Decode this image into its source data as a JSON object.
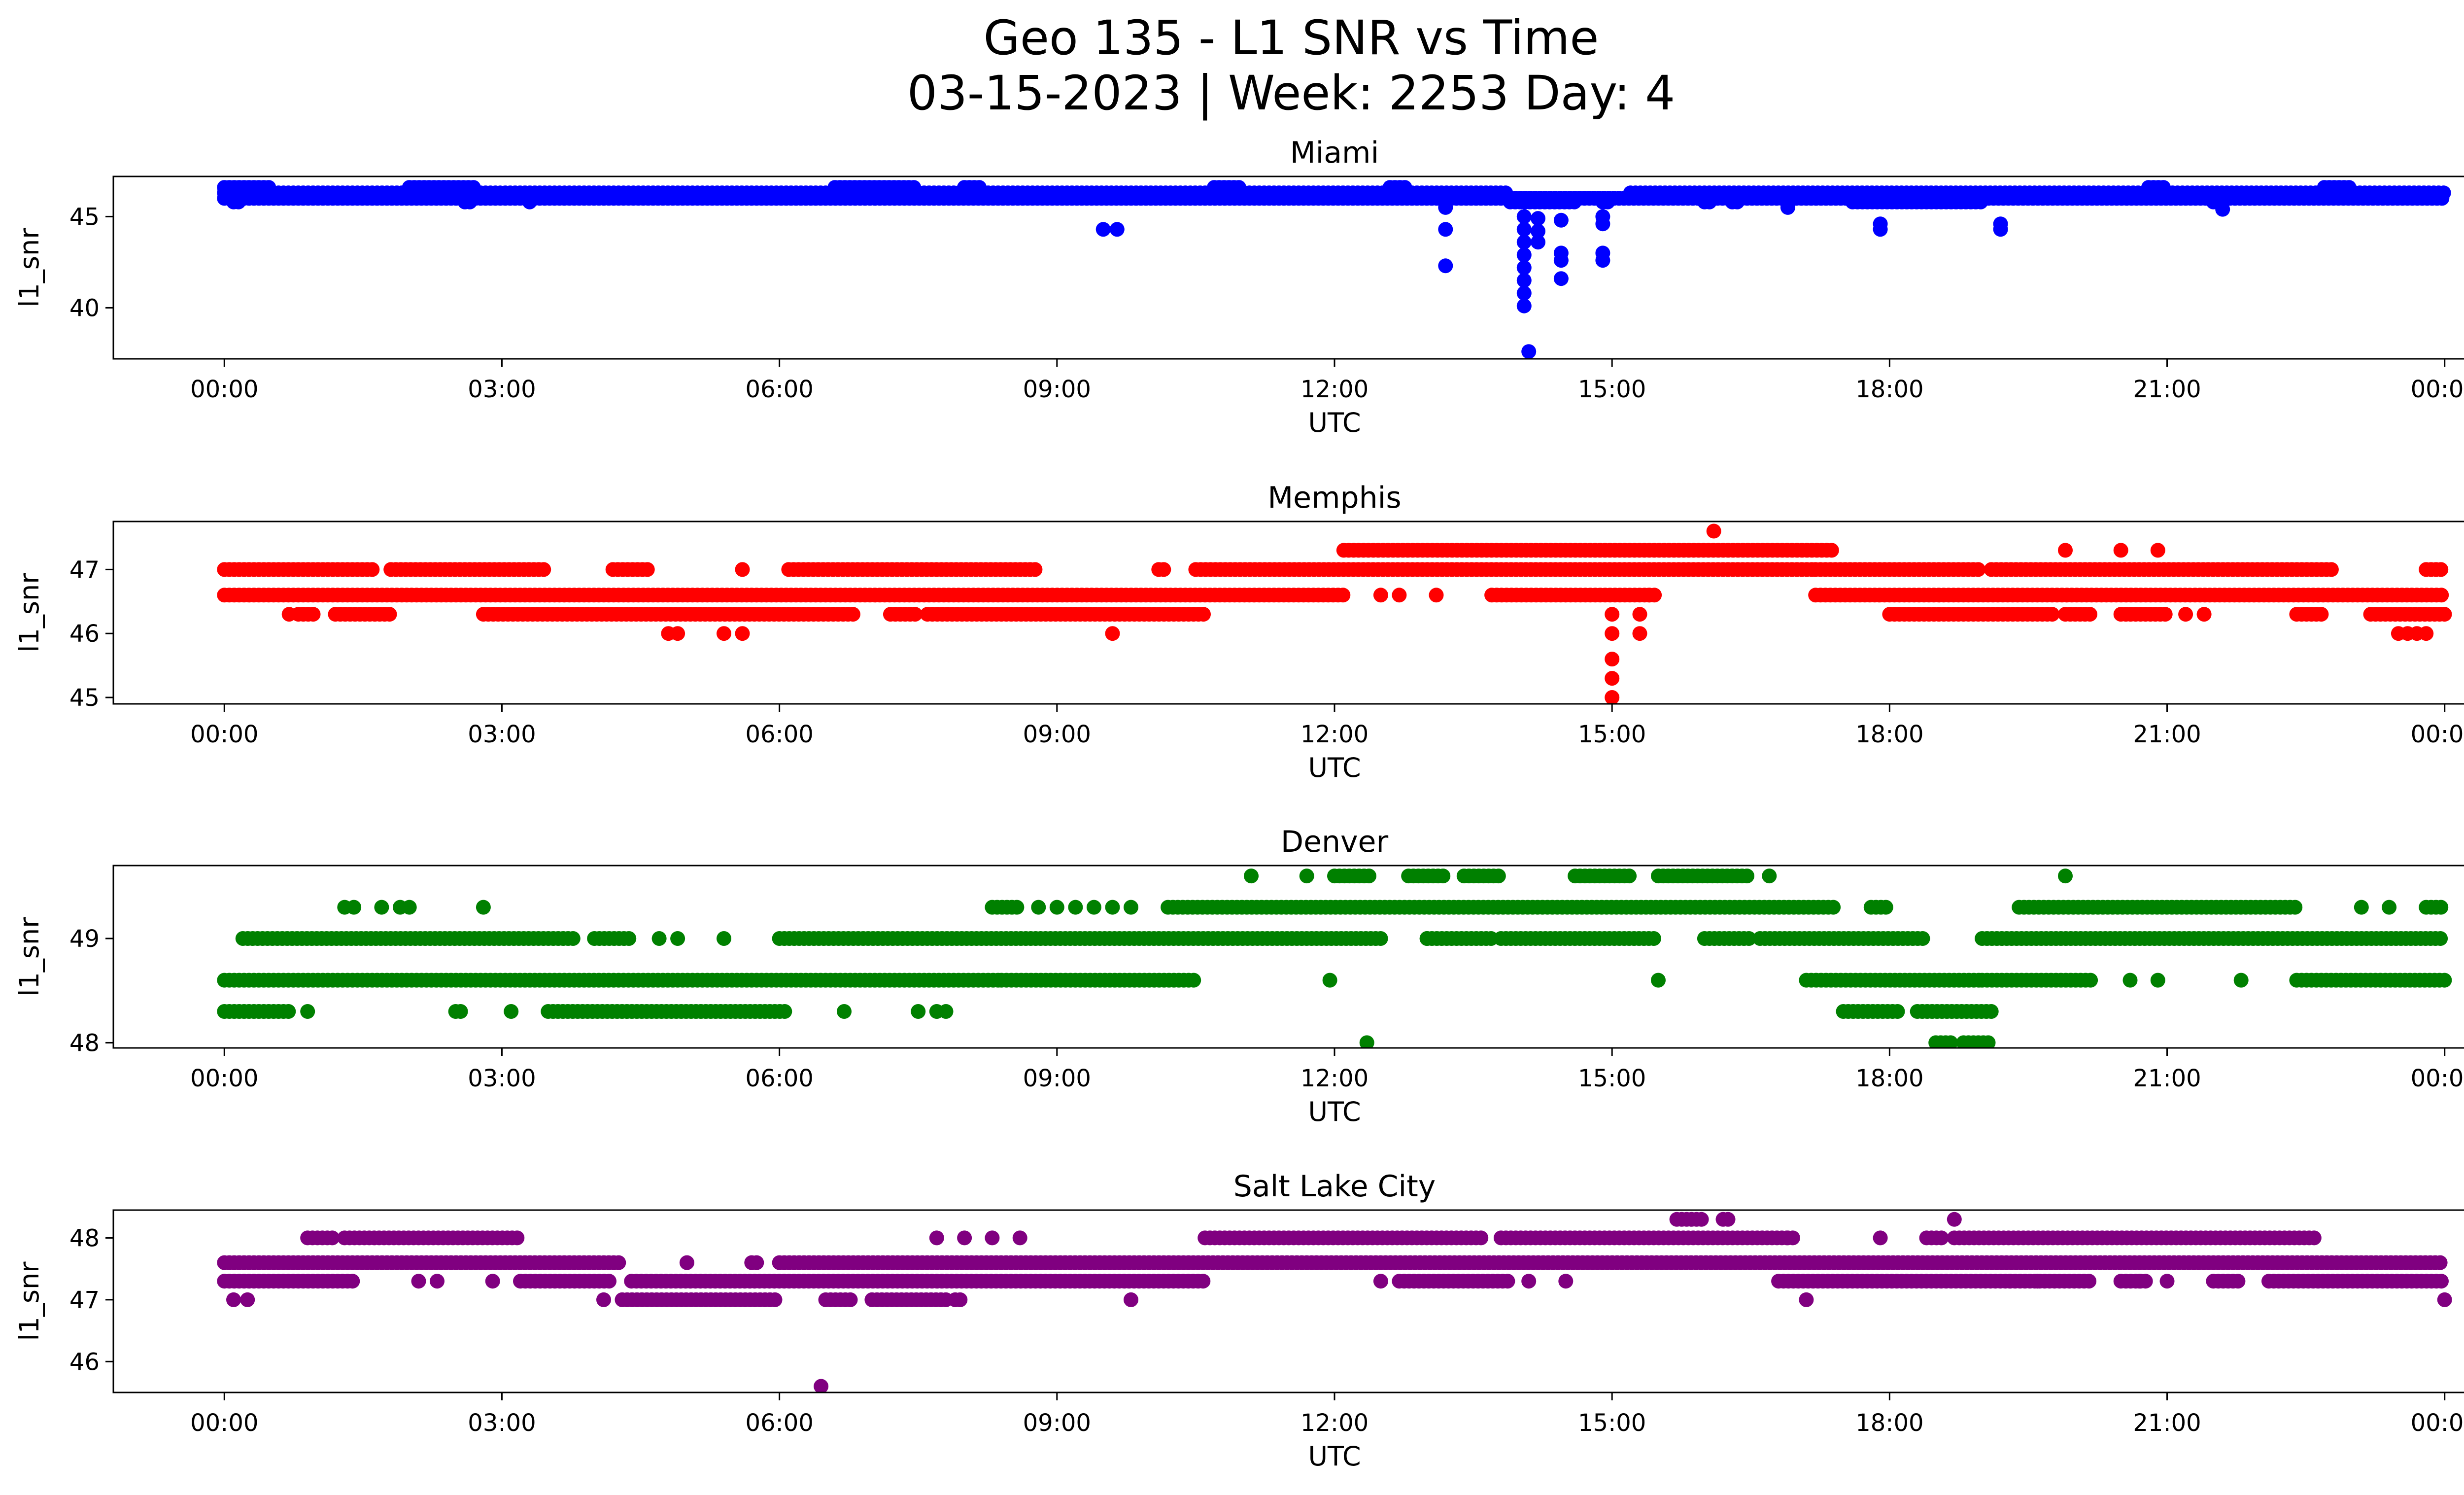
{
  "figure": {
    "title_line1": "Geo 135 - L1 SNR vs Time",
    "title_line2": "03-15-2023 | Week: 2253 Day: 4"
  },
  "chart_data": [
    {
      "type": "scatter",
      "title": "Miami",
      "xlabel": "UTC",
      "ylabel": "l1_snr",
      "color": "#0000ff",
      "x_ticks": [
        "00:00",
        "03:00",
        "06:00",
        "09:00",
        "12:00",
        "15:00",
        "18:00",
        "21:00",
        "00:00"
      ],
      "xlim_hours": [
        -1.2,
        25.2
      ],
      "ylim": [
        37.2,
        47.2
      ],
      "y_ticks": [
        40,
        45
      ],
      "levels": [
        {
          "y": 46.0,
          "ranges": [
            [
              0.0,
              24.0
            ]
          ]
        },
        {
          "y": 46.3,
          "ranges": [
            [
              0.0,
              13.9
            ],
            [
              15.2,
              24.0
            ]
          ]
        },
        {
          "y": 45.8,
          "ranges": [
            [
              0.1,
              0.2
            ],
            [
              2.6,
              2.7
            ],
            [
              3.3,
              3.35
            ],
            [
              13.9,
              14.6
            ],
            [
              14.9,
              15.0
            ],
            [
              16.0,
              16.1
            ],
            [
              16.3,
              16.4
            ],
            [
              17.6,
              19.0
            ],
            [
              21.5,
              21.6
            ]
          ]
        },
        {
          "y": 46.6,
          "ranges": [
            [
              0.0,
              0.5
            ],
            [
              2.0,
              2.7
            ],
            [
              6.6,
              7.5
            ],
            [
              8.0,
              8.2
            ],
            [
              10.7,
              11.0
            ],
            [
              12.6,
              12.8
            ],
            [
              20.8,
              21.0
            ],
            [
              22.7,
              23.0
            ]
          ]
        }
      ],
      "points": [
        [
          9.5,
          44.3
        ],
        [
          9.65,
          44.3
        ],
        [
          13.2,
          45.5
        ],
        [
          13.2,
          44.3
        ],
        [
          13.2,
          42.3
        ],
        [
          14.05,
          45.0
        ],
        [
          14.05,
          44.3
        ],
        [
          14.05,
          43.6
        ],
        [
          14.05,
          42.9
        ],
        [
          14.05,
          42.2
        ],
        [
          14.05,
          41.5
        ],
        [
          14.05,
          40.8
        ],
        [
          14.05,
          40.1
        ],
        [
          14.1,
          37.6
        ],
        [
          14.2,
          44.9
        ],
        [
          14.2,
          44.2
        ],
        [
          14.2,
          43.6
        ],
        [
          14.45,
          44.8
        ],
        [
          14.45,
          43.0
        ],
        [
          14.45,
          42.6
        ],
        [
          14.45,
          41.6
        ],
        [
          14.9,
          45.0
        ],
        [
          14.9,
          44.6
        ],
        [
          14.9,
          43.0
        ],
        [
          14.9,
          42.6
        ],
        [
          17.9,
          44.6
        ],
        [
          17.9,
          44.3
        ],
        [
          19.2,
          44.6
        ],
        [
          19.2,
          44.3
        ],
        [
          16.9,
          45.5
        ],
        [
          21.6,
          45.4
        ]
      ]
    },
    {
      "type": "scatter",
      "title": "Memphis",
      "xlabel": "UTC",
      "ylabel": "l1_snr",
      "color": "#ff0000",
      "x_ticks": [
        "00:00",
        "03:00",
        "06:00",
        "09:00",
        "12:00",
        "15:00",
        "18:00",
        "21:00",
        "00:00"
      ],
      "xlim_hours": [
        -1.2,
        25.2
      ],
      "ylim": [
        44.9,
        47.75
      ],
      "y_ticks": [
        45,
        46,
        47
      ],
      "levels": [
        {
          "y": 46.6,
          "ranges": [
            [
              0.0,
              12.1
            ],
            [
              17.2,
              24.0
            ]
          ]
        },
        {
          "y": 47.0,
          "ranges": [
            [
              0.0,
              1.6
            ],
            [
              1.8,
              3.5
            ],
            [
              4.2,
              4.6
            ],
            [
              6.1,
              8.8
            ],
            [
              10.1,
              10.2
            ],
            [
              10.5,
              17.2
            ],
            [
              17.2,
              19.0
            ],
            [
              19.1,
              22.8
            ],
            [
              23.8,
              24.0
            ]
          ]
        },
        {
          "y": 46.3,
          "ranges": [
            [
              0.8,
              1.0
            ],
            [
              1.2,
              1.8
            ],
            [
              2.8,
              6.8
            ],
            [
              7.2,
              7.5
            ],
            [
              7.6,
              10.6
            ],
            [
              18.0,
              19.8
            ],
            [
              19.9,
              20.2
            ],
            [
              20.5,
              21.0
            ],
            [
              22.4,
              22.7
            ],
            [
              23.2,
              24.0
            ]
          ]
        },
        {
          "y": 47.3,
          "ranges": [
            [
              12.1,
              17.4
            ]
          ]
        },
        {
          "y": 46.6,
          "ranges": [
            [
              13.7,
              15.5
            ]
          ]
        }
      ],
      "points": [
        [
          0.7,
          46.3
        ],
        [
          4.8,
          46.0
        ],
        [
          4.9,
          46.0
        ],
        [
          5.4,
          46.0
        ],
        [
          5.6,
          46.0
        ],
        [
          5.6,
          47.0
        ],
        [
          9.6,
          46.0
        ],
        [
          12.5,
          46.6
        ],
        [
          12.7,
          46.6
        ],
        [
          13.1,
          46.6
        ],
        [
          15.4,
          46.6
        ],
        [
          15.0,
          46.3
        ],
        [
          15.0,
          46.0
        ],
        [
          15.0,
          45.6
        ],
        [
          15.0,
          45.3
        ],
        [
          15.0,
          45.0
        ],
        [
          15.3,
          46.3
        ],
        [
          15.3,
          46.0
        ],
        [
          16.1,
          47.6
        ],
        [
          19.9,
          47.3
        ],
        [
          20.5,
          47.3
        ],
        [
          20.9,
          47.3
        ],
        [
          21.2,
          46.3
        ],
        [
          21.4,
          46.3
        ],
        [
          23.5,
          46.0
        ],
        [
          23.6,
          46.0
        ],
        [
          23.7,
          46.0
        ],
        [
          23.8,
          46.0
        ]
      ]
    },
    {
      "type": "scatter",
      "title": "Denver",
      "xlabel": "UTC",
      "ylabel": "l1_snr",
      "color": "#008000",
      "x_ticks": [
        "00:00",
        "03:00",
        "06:00",
        "09:00",
        "12:00",
        "15:00",
        "18:00",
        "21:00",
        "00:00"
      ],
      "xlim_hours": [
        -1.2,
        25.2
      ],
      "ylim": [
        47.95,
        49.7
      ],
      "y_ticks": [
        48,
        49
      ],
      "levels": [
        {
          "y": 48.6,
          "ranges": [
            [
              0.0,
              8.4
            ],
            [
              8.4,
              10.5
            ],
            [
              17.1,
              19.0
            ],
            [
              19.0,
              20.2
            ],
            [
              22.4,
              24.0
            ]
          ]
        },
        {
          "y": 49.0,
          "ranges": [
            [
              0.2,
              3.8
            ],
            [
              4.0,
              4.4
            ],
            [
              6.0,
              12.5
            ],
            [
              13.0,
              13.7
            ],
            [
              13.8,
              15.5
            ],
            [
              16.0,
              16.5
            ],
            [
              16.6,
              18.4
            ],
            [
              19.0,
              24.0
            ]
          ]
        },
        {
          "y": 48.3,
          "ranges": [
            [
              0.0,
              0.7
            ],
            [
              2.5,
              2.6
            ],
            [
              3.5,
              6.1
            ],
            [
              17.5,
              18.1
            ],
            [
              18.3,
              19.1
            ]
          ]
        },
        {
          "y": 49.3,
          "ranges": [
            [
              8.3,
              8.6
            ],
            [
              10.2,
              17.4
            ],
            [
              17.8,
              18.0
            ],
            [
              19.4,
              22.4
            ],
            [
              23.8,
              24.0
            ]
          ]
        },
        {
          "y": 49.6,
          "ranges": [
            [
              12.0,
              12.4
            ],
            [
              12.8,
              13.2
            ],
            [
              13.4,
              13.8
            ],
            [
              14.6,
              15.2
            ],
            [
              15.5,
              16.5
            ]
          ]
        },
        {
          "y": 48.0,
          "ranges": [
            [
              18.5,
              18.7
            ],
            [
              18.8,
              19.1
            ]
          ]
        }
      ],
      "points": [
        [
          0.9,
          48.3
        ],
        [
          1.3,
          49.3
        ],
        [
          1.4,
          49.3
        ],
        [
          1.7,
          49.3
        ],
        [
          1.9,
          49.3
        ],
        [
          2.0,
          49.3
        ],
        [
          2.8,
          49.3
        ],
        [
          3.1,
          48.3
        ],
        [
          4.7,
          49.0
        ],
        [
          4.9,
          49.0
        ],
        [
          5.4,
          49.0
        ],
        [
          6.7,
          48.3
        ],
        [
          7.5,
          48.3
        ],
        [
          7.7,
          48.3
        ],
        [
          7.8,
          48.3
        ],
        [
          8.8,
          49.3
        ],
        [
          9.0,
          49.3
        ],
        [
          9.2,
          49.3
        ],
        [
          9.4,
          49.3
        ],
        [
          9.6,
          49.3
        ],
        [
          9.8,
          49.3
        ],
        [
          11.1,
          49.6
        ],
        [
          11.7,
          49.6
        ],
        [
          11.95,
          48.6
        ],
        [
          12.35,
          48.0
        ],
        [
          13.0,
          49.0
        ],
        [
          15.5,
          48.6
        ],
        [
          16.7,
          49.6
        ],
        [
          19.9,
          49.6
        ],
        [
          20.6,
          48.6
        ],
        [
          20.9,
          48.6
        ],
        [
          21.8,
          48.6
        ],
        [
          23.1,
          49.3
        ],
        [
          23.4,
          49.3
        ]
      ]
    },
    {
      "type": "scatter",
      "title": "Salt Lake City",
      "xlabel": "UTC",
      "ylabel": "l1_snr",
      "color": "#800080",
      "x_ticks": [
        "00:00",
        "03:00",
        "06:00",
        "09:00",
        "12:00",
        "15:00",
        "18:00",
        "21:00",
        "00:00"
      ],
      "xlim_hours": [
        -1.2,
        25.2
      ],
      "ylim": [
        45.5,
        48.45
      ],
      "y_ticks": [
        46,
        47,
        48
      ],
      "levels": [
        {
          "y": 47.6,
          "ranges": [
            [
              0.0,
              4.3
            ],
            [
              5.7,
              5.8
            ],
            [
              6.0,
              24.0
            ]
          ]
        },
        {
          "y": 47.3,
          "ranges": [
            [
              0.0,
              1.4
            ],
            [
              3.2,
              4.2
            ],
            [
              4.4,
              10.6
            ],
            [
              12.7,
              13.9
            ],
            [
              16.8,
              20.2
            ],
            [
              20.5,
              20.8
            ],
            [
              21.5,
              21.8
            ],
            [
              22.1,
              24.0
            ]
          ]
        },
        {
          "y": 48.0,
          "ranges": [
            [
              0.9,
              1.2
            ],
            [
              1.3,
              3.2
            ],
            [
              10.6,
              13.6
            ],
            [
              13.8,
              16.9
            ],
            [
              16.9,
              17.0
            ],
            [
              18.4,
              18.6
            ],
            [
              18.7,
              22.6
            ]
          ]
        },
        {
          "y": 47.0,
          "ranges": [
            [
              4.3,
              6.0
            ],
            [
              6.5,
              6.8
            ],
            [
              7.0,
              7.8
            ],
            [
              7.9,
              8.0
            ]
          ]
        },
        {
          "y": 48.3,
          "ranges": [
            [
              15.7,
              16.0
            ],
            [
              16.2,
              16.3
            ]
          ]
        }
      ],
      "points": [
        [
          0.1,
          47.0
        ],
        [
          0.25,
          47.0
        ],
        [
          2.1,
          47.3
        ],
        [
          2.3,
          47.3
        ],
        [
          2.9,
          47.3
        ],
        [
          4.1,
          47.0
        ],
        [
          5.0,
          47.6
        ],
        [
          7.7,
          48.0
        ],
        [
          8.0,
          48.0
        ],
        [
          8.3,
          48.0
        ],
        [
          8.6,
          48.0
        ],
        [
          9.8,
          47.0
        ],
        [
          6.45,
          45.6
        ],
        [
          12.5,
          47.3
        ],
        [
          14.1,
          47.3
        ],
        [
          14.5,
          47.3
        ],
        [
          17.1,
          47.0
        ],
        [
          17.9,
          48.0
        ],
        [
          18.7,
          48.3
        ],
        [
          19.3,
          47.3
        ],
        [
          19.6,
          47.3
        ],
        [
          20.7,
          47.3
        ],
        [
          21.0,
          47.3
        ],
        [
          24.0,
          47.0
        ]
      ]
    }
  ]
}
